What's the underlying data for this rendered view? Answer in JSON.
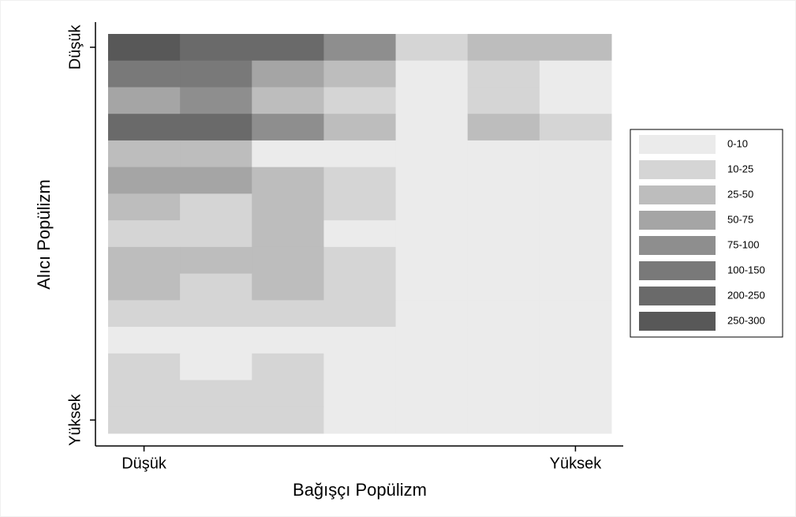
{
  "chart_data": {
    "type": "heatmap",
    "x_label": "Bağışçı Popülizm",
    "y_label": "Alıcı Popülizm",
    "x_categories": [
      "Düşük",
      null,
      null,
      null,
      null,
      null,
      "Yüksek"
    ],
    "y_categories": [
      "Düşük",
      null,
      null,
      null,
      null,
      null,
      null,
      null,
      null,
      null,
      null,
      null,
      null,
      null,
      "Yüksek"
    ],
    "values": [
      [
        275,
        225,
        225,
        87.5,
        17.5,
        37.5,
        37.5
      ],
      [
        125,
        125,
        62.5,
        37.5,
        5,
        17.5,
        5
      ],
      [
        62.5,
        87.5,
        37.5,
        17.5,
        5,
        17.5,
        5
      ],
      [
        225,
        225,
        87.5,
        37.5,
        5,
        37.5,
        17.5
      ],
      [
        37.5,
        37.5,
        5,
        5,
        5,
        5,
        5
      ],
      [
        62.5,
        62.5,
        37.5,
        17.5,
        5,
        5,
        5
      ],
      [
        37.5,
        17.5,
        37.5,
        17.5,
        5,
        5,
        5
      ],
      [
        17.5,
        17.5,
        37.5,
        5,
        5,
        5,
        5
      ],
      [
        37.5,
        37.5,
        37.5,
        17.5,
        5,
        5,
        5
      ],
      [
        37.5,
        17.5,
        37.5,
        17.5,
        5,
        5,
        5
      ],
      [
        17.5,
        17.5,
        17.5,
        17.5,
        5,
        5,
        5
      ],
      [
        5,
        5,
        5,
        5,
        5,
        5,
        5
      ],
      [
        17.5,
        5,
        17.5,
        5,
        5,
        5,
        5
      ],
      [
        17.5,
        17.5,
        17.5,
        5,
        5,
        5,
        5
      ],
      [
        17.5,
        17.5,
        17.5,
        5,
        5,
        5,
        5
      ]
    ],
    "legend": [
      {
        "label": "0-10",
        "range": [
          0,
          10
        ],
        "color": "#ebebeb"
      },
      {
        "label": "10-25",
        "range": [
          10,
          25
        ],
        "color": "#d5d5d5"
      },
      {
        "label": "25-50",
        "range": [
          25,
          50
        ],
        "color": "#bdbdbd"
      },
      {
        "label": "50-75",
        "range": [
          50,
          75
        ],
        "color": "#a5a5a5"
      },
      {
        "label": "75-100",
        "range": [
          75,
          100
        ],
        "color": "#8e8e8e"
      },
      {
        "label": "100-150",
        "range": [
          100,
          150
        ],
        "color": "#797979"
      },
      {
        "label": "200-250",
        "range": [
          200,
          250
        ],
        "color": "#6a6a6a"
      },
      {
        "label": "250-300",
        "range": [
          250,
          300
        ],
        "color": "#585858"
      }
    ]
  }
}
